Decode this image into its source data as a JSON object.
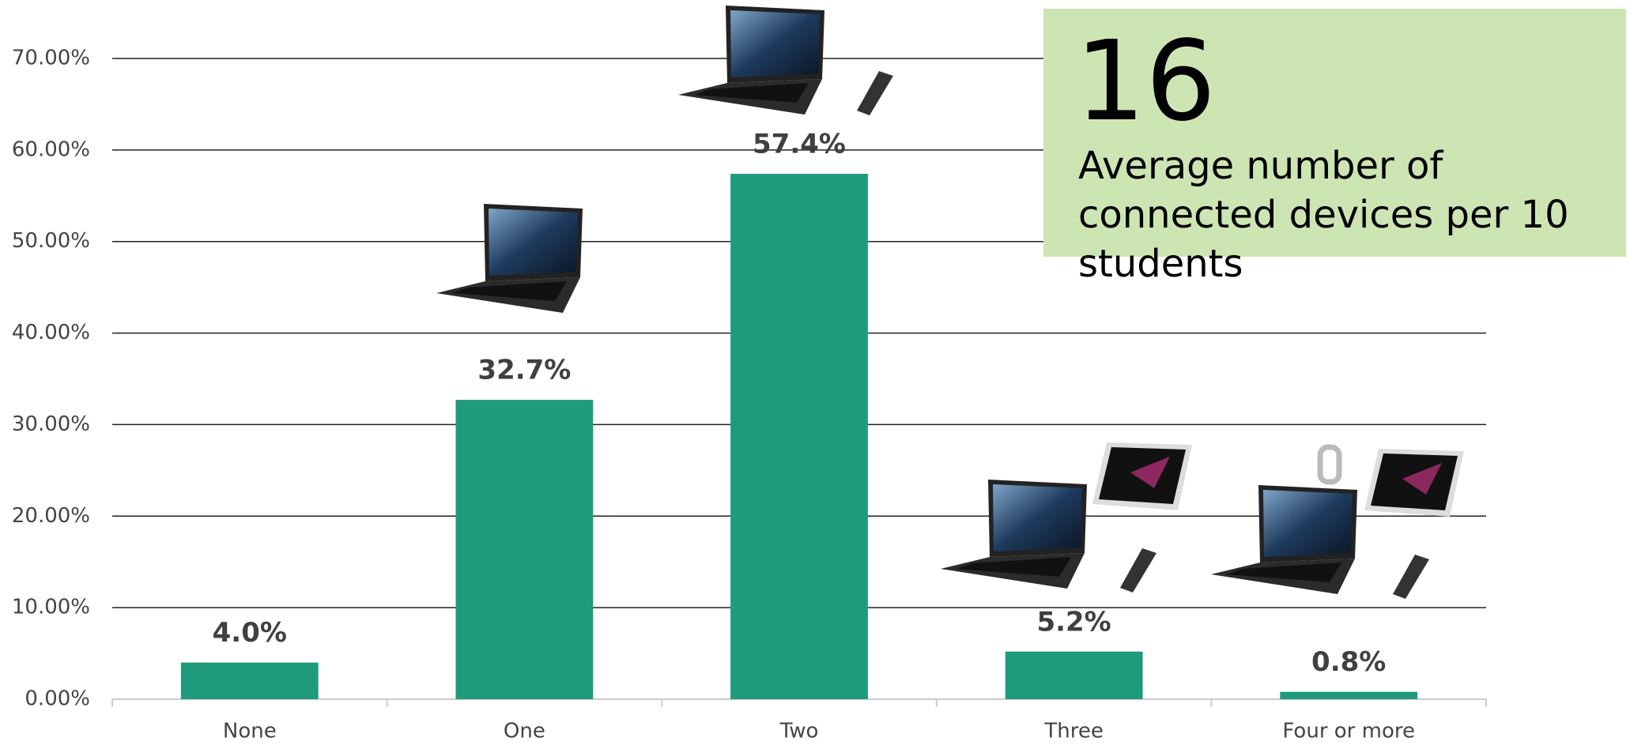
{
  "chart_data": {
    "type": "bar",
    "categories": [
      "None",
      "One",
      "Two",
      "Three",
      "Four or more"
    ],
    "values": [
      4.0,
      32.7,
      57.4,
      5.2,
      0.8
    ],
    "value_labels": [
      "4.0%",
      "32.7%",
      "57.4%",
      "5.2%",
      "0.8%"
    ],
    "color": "#1e9b7a",
    "ylim": [
      0,
      70
    ],
    "yticks": [
      {
        "value": 0,
        "label": "0.00%"
      },
      {
        "value": 10,
        "label": "10.00%"
      },
      {
        "value": 20,
        "label": "20.00%"
      },
      {
        "value": 30,
        "label": "30.00%"
      },
      {
        "value": 40,
        "label": "40.00%"
      },
      {
        "value": 50,
        "label": "50.00%"
      },
      {
        "value": 60,
        "label": "60.00%"
      },
      {
        "value": 70,
        "label": "70.00%"
      }
    ],
    "grid": true,
    "callout": {
      "number": "16",
      "text": "Average number of connected devices per 10 students"
    }
  }
}
